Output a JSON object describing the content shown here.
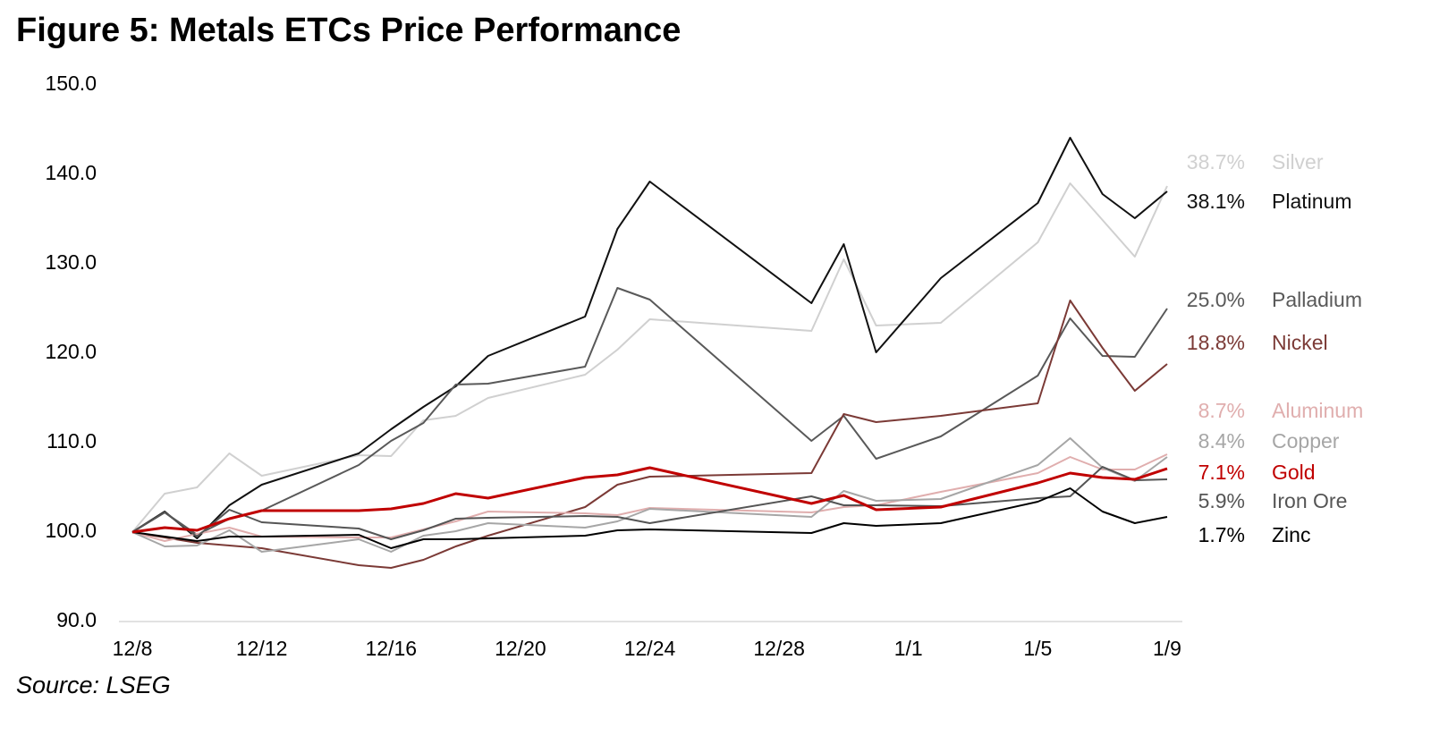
{
  "chart_data": {
    "type": "line",
    "title": "Figure 5: Metals ETCs Price Performance",
    "source": "Source: LSEG",
    "x": [
      0,
      1,
      2,
      3,
      4,
      7,
      8,
      9,
      10,
      11,
      14,
      15,
      16,
      21,
      22,
      23,
      25,
      28,
      29,
      30,
      31,
      32
    ],
    "xlim": [
      0,
      32
    ],
    "xticks": [
      {
        "value": 0,
        "label": "12/8"
      },
      {
        "value": 4,
        "label": "12/12"
      },
      {
        "value": 8,
        "label": "12/16"
      },
      {
        "value": 12,
        "label": "12/20"
      },
      {
        "value": 16,
        "label": "12/24"
      },
      {
        "value": 20,
        "label": "12/28"
      },
      {
        "value": 24,
        "label": "1/1"
      },
      {
        "value": 28,
        "label": "1/5"
      },
      {
        "value": 32,
        "label": "1/9"
      }
    ],
    "ylim": [
      90,
      150
    ],
    "yticks": [
      {
        "value": 90,
        "label": "90.0"
      },
      {
        "value": 100,
        "label": "100.0"
      },
      {
        "value": 110,
        "label": "110.0"
      },
      {
        "value": 120,
        "label": "120.0"
      },
      {
        "value": 130,
        "label": "130.0"
      },
      {
        "value": 140,
        "label": "140.0"
      },
      {
        "value": 150,
        "label": "150.0"
      }
    ],
    "grid": false,
    "series": [
      {
        "name": "Silver",
        "color": "#d0d0d0",
        "end_label": "38.7%",
        "values": [
          100,
          104.3,
          105,
          108.8,
          106.3,
          108.6,
          108.5,
          112.5,
          113,
          115,
          117.6,
          120.4,
          123.8,
          122.5,
          130.5,
          123.1,
          123.4,
          132.4,
          139,
          134.9,
          130.8,
          138.7
        ]
      },
      {
        "name": "Platinum",
        "color": "#111111",
        "end_label": "38.1%",
        "values": [
          100,
          102.3,
          99.3,
          103,
          105.3,
          108.8,
          111.5,
          114,
          116.3,
          119.7,
          124.1,
          133.9,
          139.2,
          125.6,
          132.2,
          120.1,
          128.4,
          136.8,
          144.1,
          137.8,
          135.1,
          138.1
        ]
      },
      {
        "name": "Palladium",
        "color": "#595959",
        "end_label": "25.0%",
        "values": [
          100,
          102.2,
          99.7,
          101.5,
          102.4,
          107.5,
          110.2,
          112.2,
          116.5,
          116.6,
          118.5,
          127.3,
          126,
          110.2,
          113,
          108.2,
          110.7,
          117.5,
          123.9,
          119.7,
          119.6,
          125
        ]
      },
      {
        "name": "Nickel",
        "color": "#7b3a36",
        "end_label": "18.8%",
        "values": [
          100,
          99.4,
          98.8,
          98.5,
          98.2,
          96.3,
          96,
          96.9,
          98.4,
          99.6,
          102.8,
          105.3,
          106.2,
          106.6,
          113.2,
          112.3,
          113,
          114.4,
          125.9,
          120.6,
          115.8,
          118.8
        ]
      },
      {
        "name": "Aluminum",
        "color": "#e0aeae",
        "end_label": "8.7%",
        "values": [
          100,
          99,
          99.8,
          100.5,
          99.5,
          99.4,
          99.4,
          100.3,
          101.2,
          102.3,
          102.1,
          101.9,
          102.7,
          102.2,
          102.8,
          103,
          104.5,
          106.6,
          108.4,
          107,
          107,
          108.7
        ]
      },
      {
        "name": "Copper",
        "color": "#a6a6a6",
        "end_label": "8.4%",
        "values": [
          100,
          98.4,
          98.5,
          100.2,
          97.8,
          99.2,
          97.8,
          99.6,
          100.1,
          101,
          100.5,
          101.2,
          102.6,
          101.7,
          104.6,
          103.5,
          103.7,
          107.5,
          110.5,
          107.2,
          105.7,
          108.4
        ]
      },
      {
        "name": "Gold",
        "color": "#c00000",
        "end_label": "7.1%",
        "values": [
          100,
          100.5,
          100.2,
          101.5,
          102.4,
          102.4,
          102.6,
          103.2,
          104.3,
          103.8,
          106.1,
          106.4,
          107.2,
          103.2,
          104.1,
          102.5,
          102.8,
          105.5,
          106.6,
          106.1,
          105.9,
          107.1
        ]
      },
      {
        "name": "Iron Ore",
        "color": "#555555",
        "end_label": "5.9%",
        "values": [
          100,
          102.2,
          99.5,
          102.5,
          101.1,
          100.4,
          99.2,
          100.2,
          101.5,
          101.6,
          101.8,
          101.7,
          101,
          104,
          103,
          103,
          102.9,
          103.8,
          104,
          107.3,
          105.8,
          105.9
        ]
      },
      {
        "name": "Zinc",
        "color": "#000000",
        "end_label": "1.7%",
        "values": [
          100,
          99.5,
          99,
          99.5,
          99.5,
          99.7,
          98.2,
          99.2,
          99.2,
          99.3,
          99.6,
          100.2,
          100.3,
          99.9,
          101,
          100.7,
          101,
          103.4,
          104.9,
          102.3,
          101,
          101.7
        ]
      }
    ]
  }
}
